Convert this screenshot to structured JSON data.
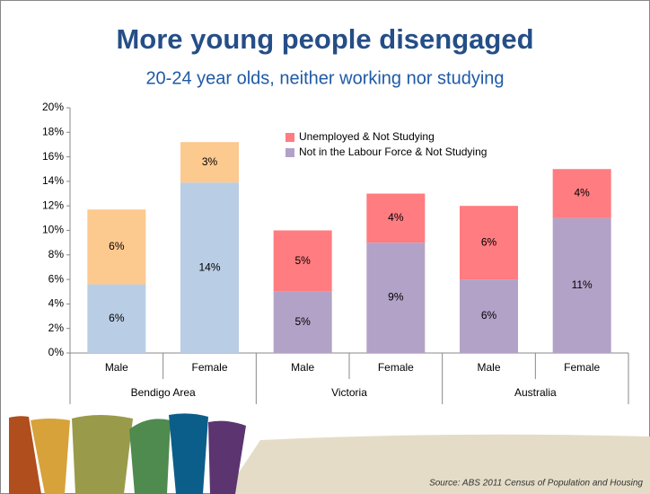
{
  "chart_data": {
    "type": "stacked_bar",
    "title": "More young people disengaged",
    "subtitle": "20-24 year olds, neither working nor studying",
    "source": "Source: ABS 2011 Census of Population and Housing",
    "categories": [
      "Male",
      "Female",
      "Male",
      "Female",
      "Male",
      "Female"
    ],
    "groups": [
      "Bendigo Area",
      "Victoria",
      "Australia"
    ],
    "series": [
      {
        "name": "Not in the Labour Force & Not Studying",
        "color": "#b3a2c7",
        "colors": [
          "#b9cde5",
          "#b9cde5",
          "#b3a2c7",
          "#b3a2c7",
          "#b3a2c7",
          "#b3a2c7"
        ],
        "values": [
          5.6,
          13.9,
          5,
          9,
          6,
          11
        ],
        "value_labels": [
          "6%",
          "14%",
          "5%",
          "9%",
          "6%",
          "11%"
        ]
      },
      {
        "name": "Unemployed & Not Studying",
        "color": "#ff7c80",
        "colors": [
          "#fcc98f",
          "#fcc98f",
          "#ff7c80",
          "#ff7c80",
          "#ff7c80",
          "#ff7c80"
        ],
        "values": [
          6.1,
          3.3,
          5,
          4,
          6,
          4
        ],
        "value_labels": [
          "6%",
          "3%",
          "5%",
          "4%",
          "6%",
          "4%"
        ]
      }
    ],
    "ylim": [
      0,
      20
    ],
    "yticks": [
      {
        "value": 0,
        "label": "0%"
      },
      {
        "value": 2,
        "label": "2%"
      },
      {
        "value": 4,
        "label": "4%"
      },
      {
        "value": 6,
        "label": "6%"
      },
      {
        "value": 8,
        "label": "8%"
      },
      {
        "value": 10,
        "label": "10%"
      },
      {
        "value": 12,
        "label": "12%"
      },
      {
        "value": 14,
        "label": "14%"
      },
      {
        "value": 16,
        "label": "16%"
      },
      {
        "value": 18,
        "label": "18%"
      },
      {
        "value": 20,
        "label": "20%"
      }
    ]
  }
}
